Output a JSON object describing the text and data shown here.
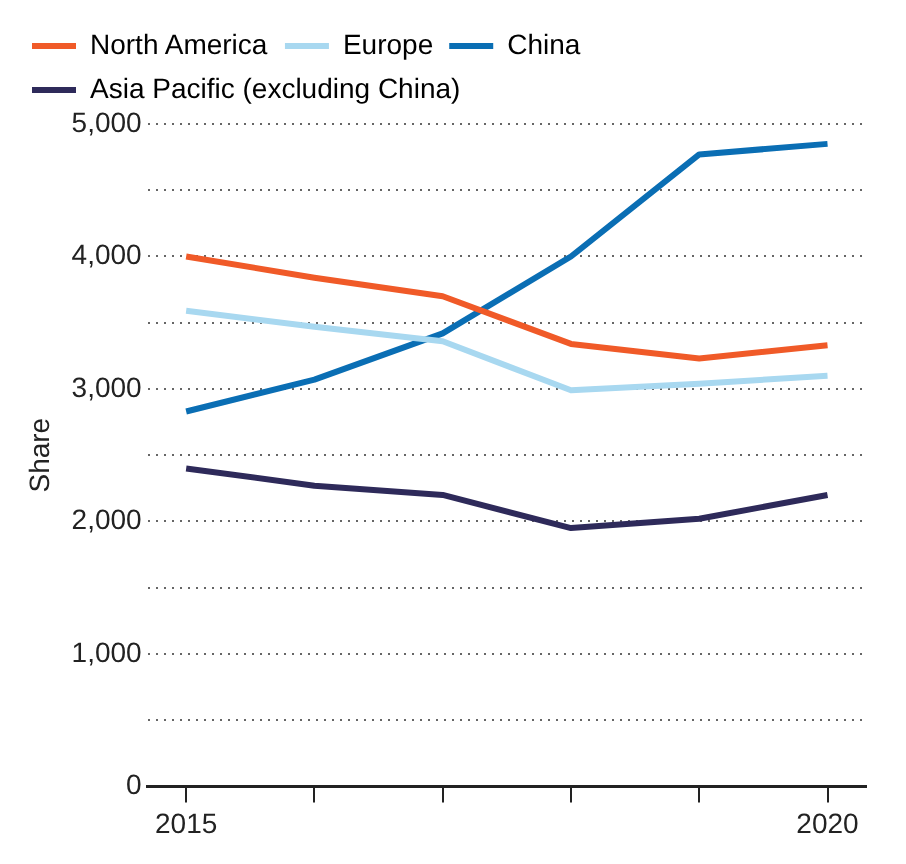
{
  "chart_data": {
    "type": "line",
    "ylabel": "Share",
    "x": [
      2015,
      2016,
      2017,
      2018,
      2019,
      2020
    ],
    "series": [
      {
        "name": "North America",
        "color": "#f05a28",
        "values": [
          4000,
          3840,
          3700,
          3340,
          3230,
          3330
        ]
      },
      {
        "name": "Europe",
        "color": "#a8d8f0",
        "values": [
          3590,
          3470,
          3360,
          2990,
          3040,
          3100
        ]
      },
      {
        "name": "China",
        "color": "#0a6eb4",
        "values": [
          2830,
          3070,
          3420,
          4000,
          4770,
          4850
        ]
      },
      {
        "name": "Asia Pacific (excluding China)",
        "color": "#2e2a5a",
        "values": [
          2400,
          2270,
          2200,
          1950,
          2020,
          2200
        ]
      }
    ],
    "xlim": [
      2014.7,
      2020.3
    ],
    "xticks": [
      2015,
      {
        "value": 2016,
        "label": null
      },
      {
        "value": 2017,
        "label": null
      },
      {
        "value": 2018,
        "label": null
      },
      {
        "value": 2019,
        "label": null
      },
      2020
    ],
    "ylim": [
      0,
      5000
    ],
    "yticks": [
      {
        "value": 0,
        "label": "0"
      },
      {
        "value": 500,
        "label": null
      },
      {
        "value": 1000,
        "label": "1,000"
      },
      {
        "value": 1500,
        "label": null
      },
      {
        "value": 2000,
        "label": "2,000"
      },
      {
        "value": 2500,
        "label": null
      },
      {
        "value": 3000,
        "label": "3,000"
      },
      {
        "value": 3500,
        "label": null
      },
      {
        "value": 4000,
        "label": "4,000"
      },
      {
        "value": 4500,
        "label": null
      },
      {
        "value": 5000,
        "label": "5,000"
      }
    ],
    "grid": "y",
    "legend": "top left",
    "marker": "none",
    "line_style": "solid"
  }
}
